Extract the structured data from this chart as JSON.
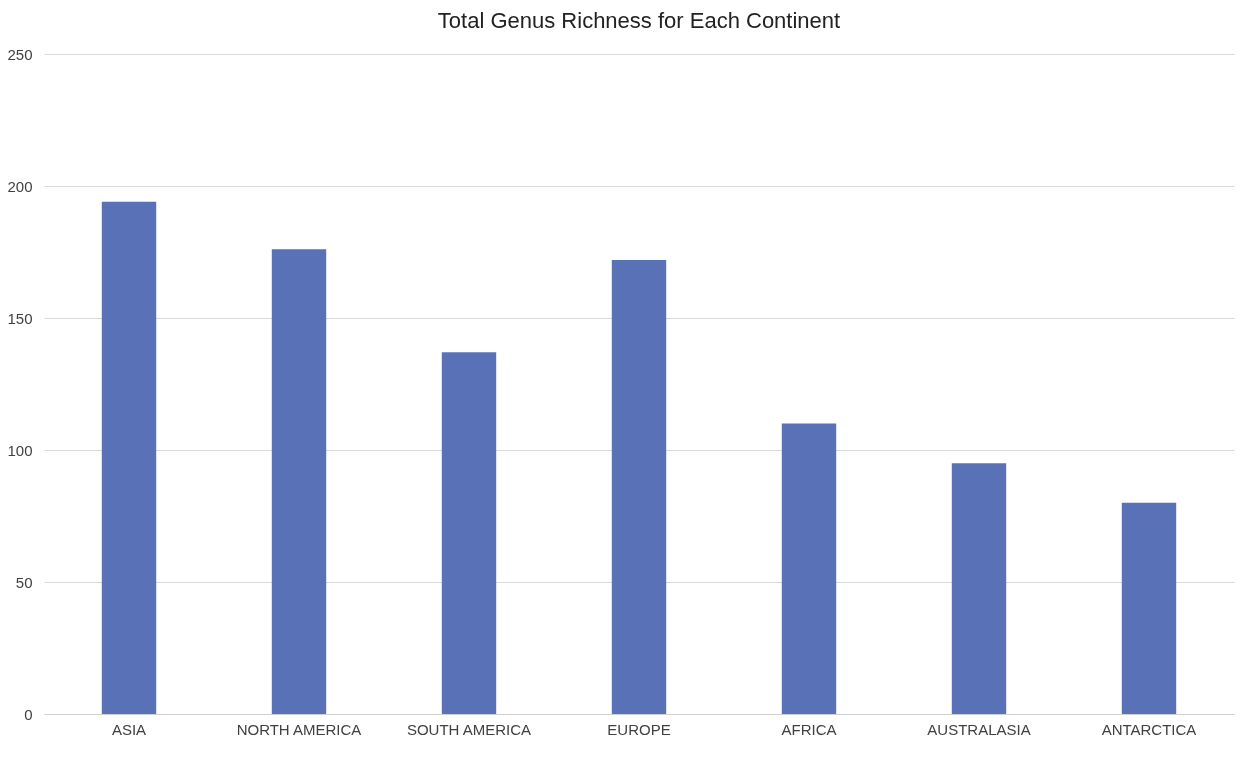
{
  "chart_data": {
    "type": "bar",
    "title": "Total Genus Richness for Each Continent",
    "categories": [
      "ASIA",
      "NORTH AMERICA",
      "SOUTH AMERICA",
      "EUROPE",
      "AFRICA",
      "AUSTRALASIA",
      "ANTARCTICA"
    ],
    "values": [
      194,
      176,
      137,
      172,
      110,
      95,
      80
    ],
    "color": "#5971b7",
    "ylim": [
      0,
      250
    ],
    "yticks": [
      0,
      50,
      100,
      150,
      200,
      250
    ],
    "grid": "y"
  }
}
